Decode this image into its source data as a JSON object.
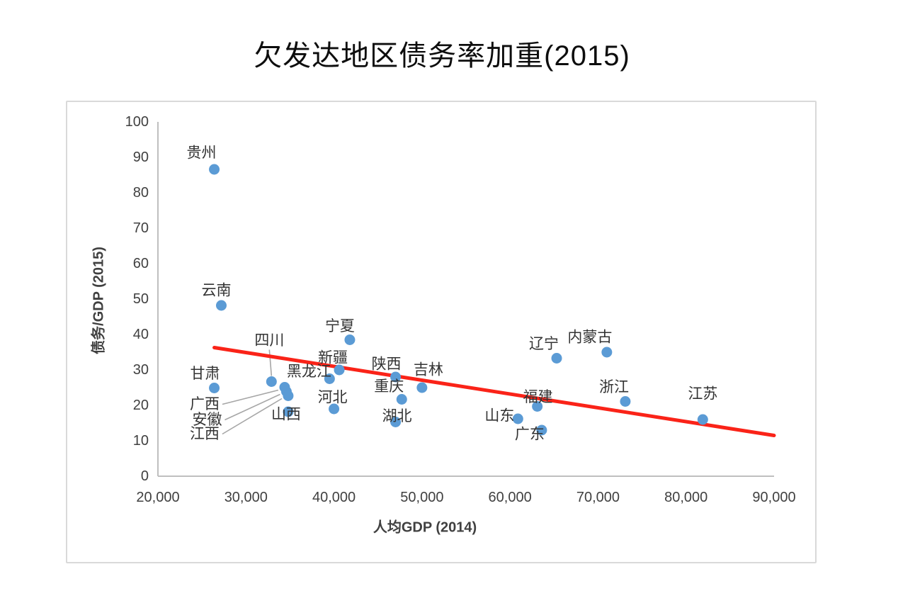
{
  "title": "欠发达地区债务率加重(2015)",
  "chart_data": {
    "type": "scatter",
    "title": "欠发达地区债务率加重(2015)",
    "xlabel": "人均GDP (2014)",
    "ylabel": "债务/GDP (2015)",
    "xlim": [
      20000,
      90000
    ],
    "ylim": [
      0,
      100
    ],
    "grid": false,
    "legend_position": "none",
    "x_ticks": [
      {
        "value": 20000,
        "label": "20,000"
      },
      {
        "value": 30000,
        "label": "30,000"
      },
      {
        "value": 40000,
        "label": "40,000"
      },
      {
        "value": 50000,
        "label": "50,000"
      },
      {
        "value": 60000,
        "label": "60,000"
      },
      {
        "value": 70000,
        "label": "70,000"
      },
      {
        "value": 80000,
        "label": "80,000"
      },
      {
        "value": 90000,
        "label": "90,000"
      }
    ],
    "y_ticks": [
      {
        "value": 0,
        "label": "0"
      },
      {
        "value": 10,
        "label": "10"
      },
      {
        "value": 20,
        "label": "20"
      },
      {
        "value": 30,
        "label": "30"
      },
      {
        "value": 40,
        "label": "40"
      },
      {
        "value": 50,
        "label": "50"
      },
      {
        "value": 60,
        "label": "60"
      },
      {
        "value": 70,
        "label": "70"
      },
      {
        "value": 80,
        "label": "80"
      },
      {
        "value": 90,
        "label": "90"
      },
      {
        "value": 100,
        "label": "100"
      }
    ],
    "series": [
      {
        "name": "provinces",
        "marker_color": "#5b9bd5",
        "points": [
          {
            "name": "贵州",
            "x": 26400,
            "y": 86.6,
            "label_dx": -18,
            "label_dy": -23
          },
          {
            "name": "云南",
            "x": 27200,
            "y": 48.2,
            "label_dx": -7,
            "label_dy": -21
          },
          {
            "name": "甘肃",
            "x": 26400,
            "y": 24.9,
            "label_dx": -13,
            "label_dy": -20
          },
          {
            "name": "四川",
            "x": 32900,
            "y": 26.7,
            "label_dx": -3,
            "label_dy": -58,
            "leader": "bottom"
          },
          {
            "name": "广西",
            "x": 34400,
            "y": 25.1,
            "label_dx": -113,
            "label_dy": 24,
            "leader": "right"
          },
          {
            "name": "安徽",
            "x": 34600,
            "y": 23.9,
            "label_dx": -112,
            "label_dy": 40,
            "leader": "right"
          },
          {
            "name": "江西",
            "x": 34800,
            "y": 22.7,
            "label_dx": -118,
            "label_dy": 54,
            "leader": "right"
          },
          {
            "name": "山西",
            "x": 34800,
            "y": 18.2,
            "label_dx": -3,
            "label_dy": 4
          },
          {
            "name": "黑龙江",
            "x": 39500,
            "y": 27.5,
            "label_dx": -29,
            "label_dy": -10
          },
          {
            "name": "新疆",
            "x": 40600,
            "y": 30.0,
            "label_dx": -9,
            "label_dy": -17
          },
          {
            "name": "宁夏",
            "x": 41800,
            "y": 38.5,
            "label_dx": -14,
            "label_dy": -19
          },
          {
            "name": "河北",
            "x": 40000,
            "y": 19.0,
            "label_dx": -2,
            "label_dy": -16
          },
          {
            "name": "陕西",
            "x": 47000,
            "y": 28.0,
            "label_dx": -13,
            "label_dy": -18
          },
          {
            "name": "重庆",
            "x": 47700,
            "y": 21.7,
            "label_dx": -18,
            "label_dy": -18
          },
          {
            "name": "湖北",
            "x": 47000,
            "y": 15.3,
            "label_dx": 2,
            "label_dy": -8
          },
          {
            "name": "吉林",
            "x": 50000,
            "y": 25.0,
            "label_dx": 9,
            "label_dy": -25
          },
          {
            "name": "山东",
            "x": 60900,
            "y": 16.2,
            "label_dx": -26,
            "label_dy": -4
          },
          {
            "name": "福建",
            "x": 63100,
            "y": 19.7,
            "label_dx": 1,
            "label_dy": -13
          },
          {
            "name": "广东",
            "x": 63600,
            "y": 13.0,
            "label_dx": -17,
            "label_dy": 6
          },
          {
            "name": "辽宁",
            "x": 65300,
            "y": 33.3,
            "label_dx": -18,
            "label_dy": -20
          },
          {
            "name": "内蒙古",
            "x": 71000,
            "y": 35.0,
            "label_dx": -24,
            "label_dy": -21
          },
          {
            "name": "浙江",
            "x": 73100,
            "y": 21.1,
            "label_dx": -16,
            "label_dy": -20
          },
          {
            "name": "江苏",
            "x": 81900,
            "y": 16.0,
            "label_dx": 0,
            "label_dy": -36
          }
        ]
      }
    ],
    "trend_line": {
      "x1": 26400,
      "y1": 36.3,
      "x2": 90000,
      "y2": 11.5,
      "color": "#fa2318",
      "width": 5
    },
    "colors": {
      "marker": "#5b9bd5",
      "trend": "#fa2318",
      "axis_line": "#bfbfbf",
      "tick_text": "#404040",
      "leader_line": "#a6a6a6",
      "chart_border": "#d9d9d9"
    }
  }
}
